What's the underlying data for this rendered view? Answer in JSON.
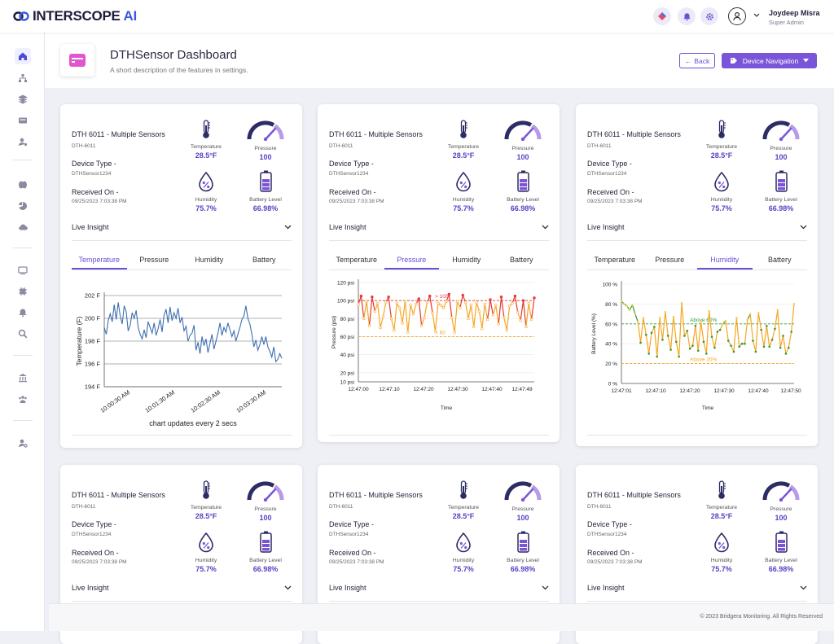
{
  "app": {
    "brand": "INTERSCOPE",
    "brand_suffix": "AI",
    "accent": "#6a4fd6"
  },
  "user": {
    "name": "Joydeep Misra",
    "role": "Super Admin"
  },
  "page": {
    "title": "DTHSensor Dashboard",
    "description": "A short description of the features in settings.",
    "back_label": "Back",
    "nav_label": "Device Navigation"
  },
  "card_template": {
    "title": "DTH 6011 - Multiple Sensors",
    "device_id": "DTH-6011",
    "device_type_label": "Device Type -",
    "device_type": "DTHSensor1234",
    "received_label": "Received On -",
    "received": "09/25/2023 7:03:38 PM",
    "metrics": {
      "temperature": {
        "label": "Temperature",
        "value": "28.5°F"
      },
      "pressure": {
        "label": "Pressure",
        "value": "100"
      },
      "humidity": {
        "label": "Humidity",
        "value": "75.7%"
      },
      "battery": {
        "label": "Battery Level",
        "value": "66.98%"
      }
    },
    "live_insight": "Live Insight",
    "tabs": [
      "Temperature",
      "Pressure",
      "Humidity",
      "Battery"
    ]
  },
  "footer": "© 2023 Bridgera Monitoring. All Rights Reserved",
  "chart_data": [
    {
      "type": "line",
      "title": "",
      "xlabel": "chart updates every 2 secs",
      "ylabel": "Temperature (F)",
      "ylim": [
        194,
        202
      ],
      "yticks": [
        "202 F",
        "200 F",
        "198 F",
        "196 F",
        "194 F"
      ],
      "xticks": [
        "10:00:30 AM",
        "10:01:30 AM",
        "10:02:30 AM",
        "10:03:30 AM"
      ],
      "values": [
        199.2,
        198.6,
        199.8,
        200.4,
        199.7,
        201.2,
        199.9,
        201.4,
        200.2,
        199.5,
        201.1,
        200.6,
        198.9,
        199.4,
        200.5,
        200.0,
        200.7,
        199.2,
        198.6,
        198.2,
        199.0,
        198.3,
        199.7,
        199.2,
        198.7,
        199.6,
        198.5,
        199.1,
        199.9,
        198.8,
        200.3,
        200.8,
        199.6,
        201.0,
        199.8,
        200.5,
        200.0,
        200.9,
        199.6,
        200.1,
        198.9,
        199.3,
        198.0,
        198.5,
        198.7,
        199.4,
        197.2,
        197.9,
        196.9,
        198.4,
        197.6,
        198.2,
        197.0,
        197.8,
        198.6,
        197.3,
        198.0,
        198.7,
        199.6,
        198.5,
        199.2,
        198.8,
        199.6,
        199.0,
        198.4,
        198.9,
        198.0,
        198.6,
        199.2,
        199.9,
        200.2,
        201.1,
        200.0,
        199.5,
        198.6,
        197.5,
        198.1,
        197.2,
        197.7,
        198.4,
        197.7,
        198.4,
        197.5,
        197.1,
        196.6,
        197.5,
        196.2,
        196.4,
        196.9,
        196.5
      ]
    },
    {
      "type": "line",
      "title": "",
      "xlabel": "Time",
      "ylabel": "Pressure (psi)",
      "ylim": [
        10,
        120
      ],
      "yticks": [
        "120 psi",
        "100 psi",
        "80 psi",
        "60 psi",
        "40 psi",
        "20 psi",
        "10 psi"
      ],
      "xticks": [
        "12:47:00",
        "12:47:10",
        "12:47:20",
        "12:47:30",
        "12:47:40",
        "12:47:49"
      ],
      "thresholds": [
        {
          "label": "> 100",
          "value": 100
        },
        {
          "label": "< 60",
          "value": 60
        }
      ],
      "values": [
        96,
        105,
        80,
        99,
        72,
        104,
        88,
        97,
        70,
        82,
        98,
        104,
        80,
        67,
        97,
        92,
        75,
        99,
        65,
        95,
        85,
        96,
        102,
        72,
        81,
        98,
        105,
        86,
        66,
        97,
        95,
        92,
        99,
        107,
        81,
        65,
        99,
        92,
        106,
        98,
        80,
        95,
        71,
        98,
        88,
        69,
        96,
        79,
        101,
        84,
        95,
        74,
        104,
        81,
        67,
        94,
        97,
        105,
        87,
        78,
        100,
        71,
        97,
        79,
        103
      ]
    },
    {
      "type": "line",
      "title": "",
      "xlabel": "Time",
      "ylabel": "Battery Level (%)",
      "ylim": [
        0,
        100
      ],
      "yticks": [
        "100 %",
        "80 %",
        "60 %",
        "40 %",
        "20 %",
        "0 %"
      ],
      "xticks": [
        "12:47:01",
        "12:47:10",
        "12:47:20",
        "12:47:30",
        "12:47:40",
        "12:47:50"
      ],
      "thresholds": [
        {
          "label": "Above 60%",
          "value": 60
        },
        {
          "label": "Above 20%",
          "value": 20
        }
      ],
      "values": [
        83,
        80,
        78,
        74,
        79,
        70,
        62,
        41,
        66,
        49,
        30,
        51,
        57,
        27,
        66,
        44,
        72,
        48,
        34,
        67,
        42,
        27,
        81,
        48,
        53,
        35,
        38,
        58,
        33,
        62,
        42,
        30,
        73,
        47,
        36,
        52,
        54,
        60,
        63,
        43,
        38,
        32,
        66,
        37,
        40,
        40,
        64,
        70,
        43,
        32,
        71,
        54,
        37,
        58,
        37,
        44,
        55,
        74,
        36,
        48,
        30,
        36,
        52,
        80
      ]
    }
  ]
}
